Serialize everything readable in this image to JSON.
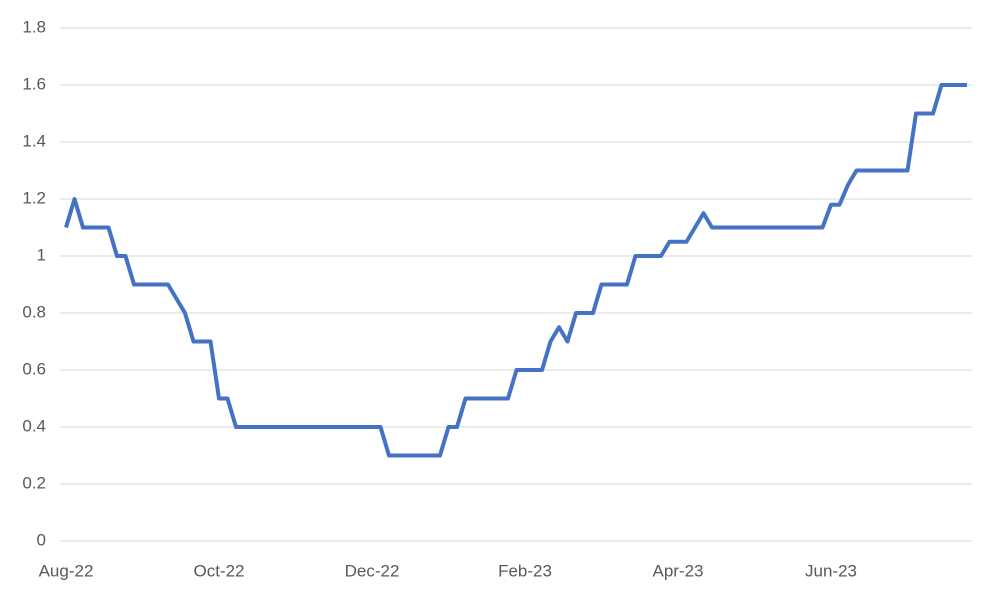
{
  "chart_data": {
    "type": "line",
    "categories": [
      "Aug-22",
      null,
      null,
      null,
      null,
      null,
      null,
      null,
      null,
      null,
      null,
      null,
      null,
      null,
      null,
      null,
      null,
      null,
      "Oct-22",
      null,
      null,
      null,
      null,
      null,
      null,
      null,
      null,
      null,
      null,
      null,
      null,
      null,
      null,
      null,
      null,
      null,
      "Dec-22",
      null,
      null,
      null,
      null,
      null,
      null,
      null,
      null,
      null,
      null,
      null,
      null,
      null,
      null,
      null,
      null,
      null,
      "Feb-23",
      null,
      null,
      null,
      null,
      null,
      null,
      null,
      null,
      null,
      null,
      null,
      null,
      null,
      null,
      null,
      null,
      null,
      "Apr-23",
      null,
      null,
      null,
      null,
      null,
      null,
      null,
      null,
      null,
      null,
      null,
      null,
      null,
      null,
      null,
      null,
      null,
      "Jun-23",
      null,
      null,
      null,
      null,
      null,
      null,
      null,
      null,
      null,
      null,
      null,
      null,
      null,
      null,
      null,
      null
    ],
    "series": [
      {
        "color": "#4472c4",
        "values": [
          1.1,
          1.2,
          1.1,
          1.1,
          1.1,
          1.1,
          1.0,
          1.0,
          0.9,
          0.9,
          0.9,
          0.9,
          0.9,
          0.85,
          0.8,
          0.7,
          0.7,
          0.7,
          0.5,
          0.5,
          0.4,
          0.4,
          0.4,
          0.4,
          0.4,
          0.4,
          0.4,
          0.4,
          0.4,
          0.4,
          0.4,
          0.4,
          0.4,
          0.4,
          0.4,
          0.4,
          0.4,
          0.4,
          0.3,
          0.3,
          0.3,
          0.3,
          0.3,
          0.3,
          0.3,
          0.4,
          0.4,
          0.5,
          0.5,
          0.5,
          0.5,
          0.5,
          0.5,
          0.6,
          0.6,
          0.6,
          0.6,
          0.7,
          0.75,
          0.7,
          0.8,
          0.8,
          0.8,
          0.9,
          0.9,
          0.9,
          0.9,
          1.0,
          1.0,
          1.0,
          1.0,
          1.05,
          1.05,
          1.05,
          1.1,
          1.15,
          1.1,
          1.1,
          1.1,
          1.1,
          1.1,
          1.1,
          1.1,
          1.1,
          1.1,
          1.1,
          1.1,
          1.1,
          1.1,
          1.1,
          1.18,
          1.18,
          1.25,
          1.3,
          1.3,
          1.3,
          1.3,
          1.3,
          1.3,
          1.3,
          1.5,
          1.5,
          1.5,
          1.6,
          1.6,
          1.6,
          1.6
        ]
      }
    ],
    "ylim": [
      0,
      1.8
    ],
    "yticks": [
      0,
      0.2,
      0.4,
      0.6,
      0.8,
      1,
      1.2,
      1.4,
      1.6,
      1.8
    ],
    "grid": true
  }
}
